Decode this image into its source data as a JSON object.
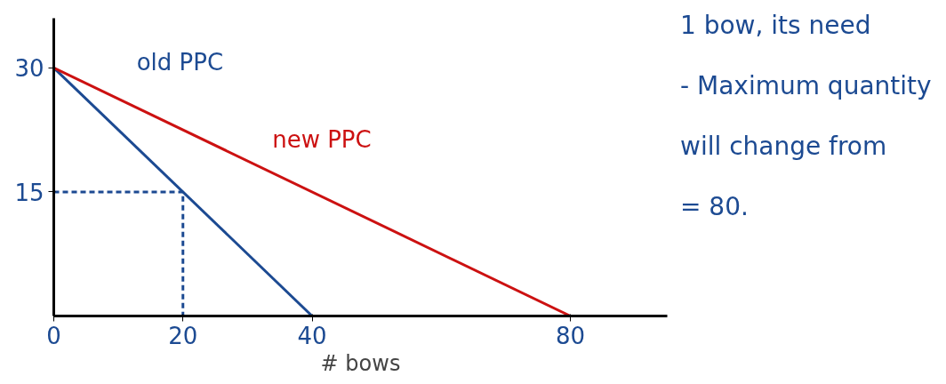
{
  "chart_data": {
    "type": "line",
    "xlabel": "# bows",
    "xlim": [
      0,
      95
    ],
    "ylim": [
      0,
      36
    ],
    "xticks": [
      0,
      20,
      40,
      80
    ],
    "yticks": [
      15,
      30
    ],
    "grid": false,
    "marker": "none",
    "line_style": "solid",
    "series": [
      {
        "color": "#1c4a92",
        "x": [
          0,
          40
        ],
        "values": [
          30,
          0
        ]
      },
      {
        "color": "#cc1111",
        "x": [
          0,
          80
        ],
        "values": [
          30,
          0
        ]
      },
      {
        "color": "#1c4a92",
        "x": [
          0,
          20,
          20
        ],
        "values": [
          15,
          15,
          0
        ],
        "line_style": "dashed"
      }
    ],
    "annotations": [
      {
        "text": "old PPC",
        "x": 12,
        "y": 21
      },
      {
        "text": "new PPC",
        "x": 33,
        "y": 17.6
      },
      "1 bow, its need",
      "- Maximum quantity",
      "will change from",
      "= 80."
    ]
  }
}
